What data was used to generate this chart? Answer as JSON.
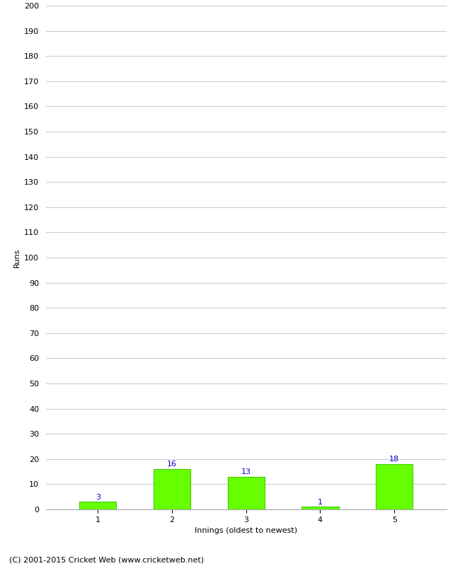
{
  "categories": [
    "1",
    "2",
    "3",
    "4",
    "5"
  ],
  "values": [
    3,
    16,
    13,
    1,
    18
  ],
  "bar_color": "#66ff00",
  "bar_edge_color": "#44cc00",
  "label_color": "#0000cc",
  "xlabel": "Innings (oldest to newest)",
  "ylabel": "Runs",
  "ylim": [
    0,
    200
  ],
  "yticks": [
    0,
    10,
    20,
    30,
    40,
    50,
    60,
    70,
    80,
    90,
    100,
    110,
    120,
    130,
    140,
    150,
    160,
    170,
    180,
    190,
    200
  ],
  "grid_color": "#cccccc",
  "background_color": "#ffffff",
  "footer": "(C) 2001-2015 Cricket Web (www.cricketweb.net)",
  "label_fontsize": 8,
  "axis_fontsize": 8,
  "footer_fontsize": 8,
  "tick_fontsize": 8
}
